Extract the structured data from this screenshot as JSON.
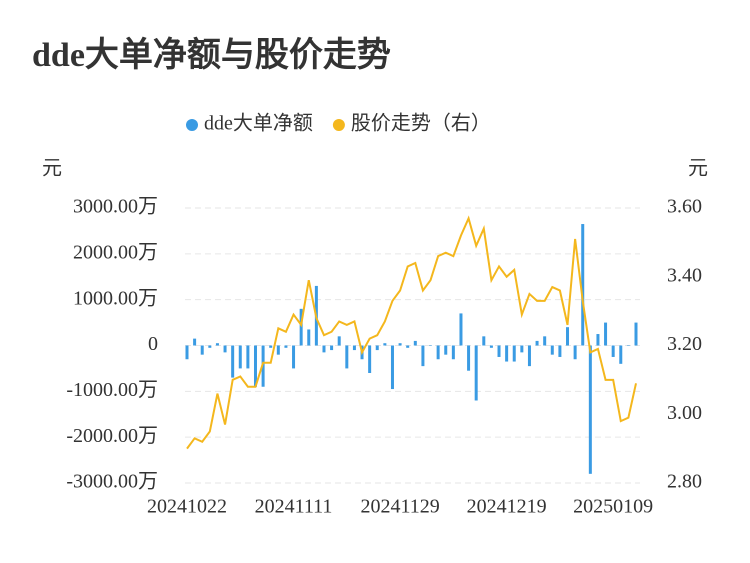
{
  "chart_data": {
    "type": "bar_line",
    "title": "dde大单净额与股价走势",
    "ylabel": "元",
    "y2label": "元",
    "categories": [
      "20241022",
      null,
      null,
      null,
      null,
      null,
      null,
      null,
      null,
      null,
      null,
      null,
      null,
      null,
      "20241111",
      null,
      null,
      null,
      null,
      null,
      null,
      null,
      null,
      null,
      null,
      null,
      null,
      null,
      "20241129",
      null,
      null,
      null,
      null,
      null,
      null,
      null,
      null,
      null,
      null,
      null,
      null,
      null,
      "20241219",
      null,
      null,
      null,
      null,
      null,
      null,
      null,
      null,
      null,
      null,
      null,
      null,
      null,
      "20250109",
      null,
      null,
      null
    ],
    "series": [
      {
        "name": "dde大单净额",
        "type": "bar",
        "color": "#3a9be3",
        "values": [
          -300,
          150,
          -200,
          -50,
          50,
          -150,
          -700,
          -500,
          -500,
          -900,
          -900,
          -50,
          -200,
          -50,
          -500,
          800,
          350,
          1300,
          -150,
          -100,
          200,
          -500,
          -100,
          -300,
          -600,
          -100,
          50,
          -950,
          50,
          -50,
          100,
          -450,
          0,
          -300,
          -200,
          -300,
          700,
          -550,
          -1200,
          200,
          -50,
          -250,
          -350,
          -350,
          -150,
          -450,
          100,
          200,
          -200,
          -250,
          400,
          -300,
          2650,
          -2800,
          250,
          500,
          -250,
          -400,
          0,
          500
        ]
      },
      {
        "name": "股价走势（右）",
        "type": "line",
        "axis": "y2",
        "color": "#f4b71d",
        "values": [
          2.9,
          2.93,
          2.92,
          2.95,
          3.06,
          2.97,
          3.1,
          3.11,
          3.08,
          3.08,
          3.15,
          3.15,
          3.25,
          3.24,
          3.29,
          3.26,
          3.39,
          3.28,
          3.23,
          3.24,
          3.27,
          3.26,
          3.27,
          3.18,
          3.22,
          3.23,
          3.27,
          3.33,
          3.36,
          3.43,
          3.44,
          3.36,
          3.39,
          3.46,
          3.47,
          3.46,
          3.52,
          3.57,
          3.49,
          3.54,
          3.39,
          3.43,
          3.4,
          3.42,
          3.29,
          3.35,
          3.33,
          3.33,
          3.37,
          3.36,
          3.26,
          3.51,
          3.33,
          3.18,
          3.19,
          3.1,
          3.1,
          2.98,
          2.99,
          3.09
        ]
      }
    ],
    "ylim": [
      -3000,
      3000
    ],
    "yticks": [
      {
        "value": 3000,
        "label": "3000.00万"
      },
      {
        "value": 2000,
        "label": "2000.00万"
      },
      {
        "value": 1000,
        "label": "1000.00万"
      },
      0,
      {
        "value": -1000,
        "label": "-1000.00万"
      },
      {
        "value": -2000,
        "label": "-2000.00万"
      },
      {
        "value": -3000,
        "label": "-3000.00万"
      }
    ],
    "y2lim": [
      2.8,
      3.6
    ],
    "y2ticks": [
      {
        "value": 3.6,
        "label": "3.60"
      },
      {
        "value": 3.4,
        "label": "3.40"
      },
      {
        "value": 3.2,
        "label": "3.20"
      },
      {
        "value": 3.0,
        "label": "3.00"
      },
      {
        "value": 2.8,
        "label": "2.80"
      }
    ],
    "grid": true,
    "legend": "top"
  }
}
